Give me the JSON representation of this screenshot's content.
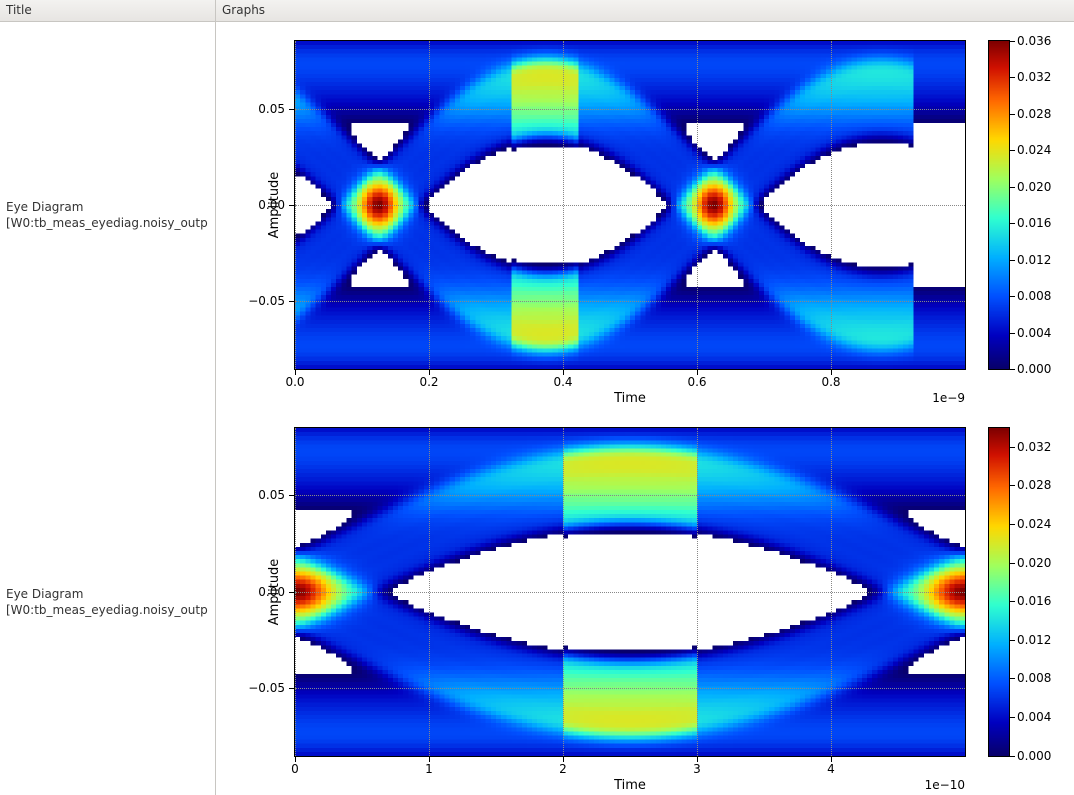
{
  "header": {
    "title_col": "Title",
    "graphs_col": "Graphs"
  },
  "rows": [
    {
      "title_line1": "Eye Diagram",
      "title_line2": "[W0:tb_meas_eyediag.noisy_outp",
      "chart": {
        "type": "heatmap",
        "xlabel": "Time",
        "ylabel": "Amplitude",
        "offset_text": "1e−9",
        "xlim": [
          0.0,
          1.0
        ],
        "xticks": [
          0.0,
          0.2,
          0.4,
          0.6,
          0.8
        ],
        "xtick_labels": [
          "0.0",
          "0.2",
          "0.4",
          "0.6",
          "0.8"
        ],
        "ylim": [
          -0.085,
          0.085
        ],
        "yticks": [
          -0.05,
          0.0,
          0.05
        ],
        "ytick_labels": [
          "−0.05",
          "0.00",
          "0.05"
        ],
        "grid_color": "#888888",
        "background_color": "#ffffff",
        "label_fontsize": 13,
        "tick_fontsize": 12,
        "eye": {
          "period": 0.5,
          "crossings": [
            0.125,
            0.625
          ],
          "top_rail": 0.076,
          "bot_rail": -0.076,
          "rail_band": 0.015,
          "cross_open": 0.055,
          "noise": 0.01
        },
        "colorbar": {
          "vmin": 0.0,
          "vmax": 0.036,
          "ticks": [
            0.0,
            0.004,
            0.008,
            0.012,
            0.016,
            0.02,
            0.024,
            0.028,
            0.032,
            0.036
          ],
          "tick_labels": [
            "0.000",
            "0.004",
            "0.008",
            "0.012",
            "0.016",
            "0.020",
            "0.024",
            "0.028",
            "0.032",
            "0.036"
          ]
        },
        "colormap": [
          [
            0.0,
            "#08006b"
          ],
          [
            0.1,
            "#0000c0"
          ],
          [
            0.22,
            "#0050ff"
          ],
          [
            0.34,
            "#00b0ff"
          ],
          [
            0.46,
            "#30ffcf"
          ],
          [
            0.58,
            "#a0ff5d"
          ],
          [
            0.7,
            "#ffd800"
          ],
          [
            0.82,
            "#ff6800"
          ],
          [
            0.92,
            "#d01000"
          ],
          [
            1.0,
            "#7f0000"
          ]
        ]
      }
    },
    {
      "title_line1": "Eye Diagram",
      "title_line2": "[W0:tb_meas_eyediag.noisy_outp",
      "chart": {
        "type": "heatmap",
        "xlabel": "Time",
        "ylabel": "Amplitude",
        "offset_text": "1e−10",
        "xlim": [
          0.0,
          5.0
        ],
        "xticks": [
          0,
          1,
          2,
          3,
          4
        ],
        "xtick_labels": [
          "0",
          "1",
          "2",
          "3",
          "4"
        ],
        "ylim": [
          -0.085,
          0.085
        ],
        "yticks": [
          -0.05,
          0.0,
          0.05
        ],
        "ytick_labels": [
          "−0.05",
          "0.00",
          "0.05"
        ],
        "grid_color": "#888888",
        "background_color": "#ffffff",
        "label_fontsize": 13,
        "tick_fontsize": 12,
        "eye": {
          "period": 5.0,
          "crossings": [
            0.0,
            5.0
          ],
          "top_rail": 0.076,
          "bot_rail": -0.076,
          "rail_band": 0.015,
          "cross_open": 0.055,
          "noise": 0.01
        },
        "colorbar": {
          "vmin": 0.0,
          "vmax": 0.034,
          "ticks": [
            0.0,
            0.004,
            0.008,
            0.012,
            0.016,
            0.02,
            0.024,
            0.028,
            0.032
          ],
          "tick_labels": [
            "0.000",
            "0.004",
            "0.008",
            "0.012",
            "0.016",
            "0.020",
            "0.024",
            "0.028",
            "0.032"
          ]
        },
        "colormap": [
          [
            0.0,
            "#08006b"
          ],
          [
            0.1,
            "#0000c0"
          ],
          [
            0.22,
            "#0050ff"
          ],
          [
            0.34,
            "#00b0ff"
          ],
          [
            0.46,
            "#30ffcf"
          ],
          [
            0.58,
            "#a0ff5d"
          ],
          [
            0.7,
            "#ffd800"
          ],
          [
            0.82,
            "#ff6800"
          ],
          [
            0.92,
            "#d01000"
          ],
          [
            1.0,
            "#7f0000"
          ]
        ]
      }
    }
  ]
}
